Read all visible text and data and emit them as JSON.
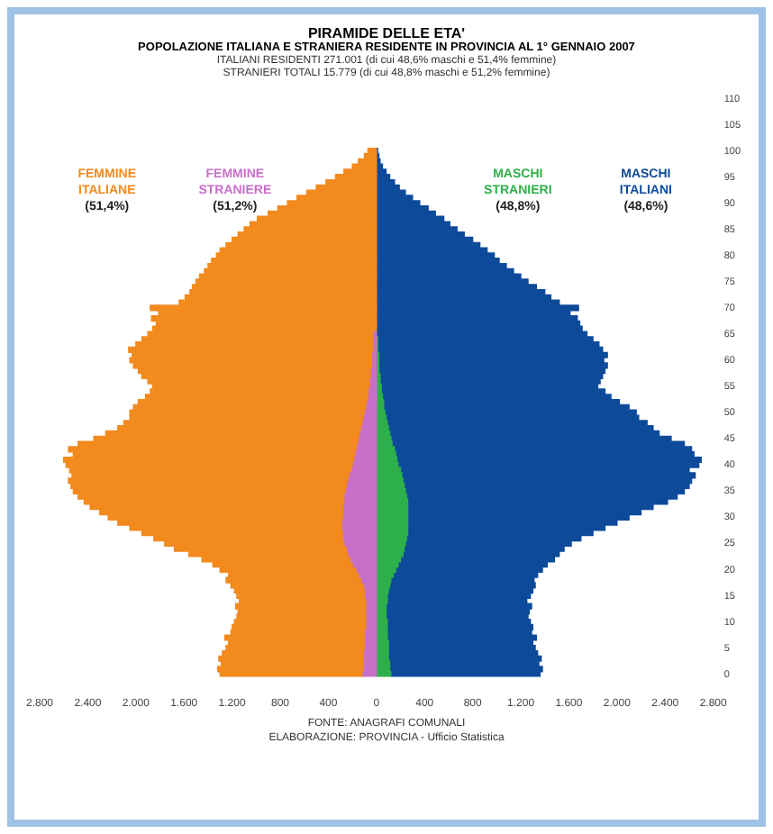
{
  "chart_data": {
    "type": "bar",
    "orientation": "horizontal",
    "stacked": true,
    "title": "PIRAMIDE DELLE ETA'",
    "subtitle": "POPOLAZIONE ITALIANA E STRANIERA RESIDENTE IN PROVINCIA AL 1° GENNAIO 2007",
    "annotations": [
      "ITALIANI RESIDENTI 271.001 (di cui 48,6% maschi e 51,4% femmine)",
      "STRANIERI TOTALI 15.779 (di cui 48,8% maschi e 51,2% femmine)",
      "FONTE: ANAGRAFI COMUNALI",
      "ELABORAZIONE: PROVINCIA - Ufficio Statistica"
    ],
    "categories": [
      "110",
      null,
      null,
      null,
      null,
      "105",
      null,
      null,
      null,
      null,
      "100",
      null,
      null,
      null,
      null,
      "95",
      null,
      null,
      null,
      null,
      "90",
      null,
      null,
      null,
      null,
      "85",
      null,
      null,
      null,
      null,
      "80",
      null,
      null,
      null,
      null,
      "75",
      null,
      null,
      null,
      null,
      "70",
      null,
      null,
      null,
      null,
      "65",
      null,
      null,
      null,
      null,
      "60",
      null,
      null,
      null,
      null,
      "55",
      null,
      null,
      null,
      null,
      "50",
      null,
      null,
      null,
      null,
      "45",
      null,
      null,
      null,
      null,
      "40",
      null,
      null,
      null,
      null,
      "35",
      null,
      null,
      null,
      null,
      "30",
      null,
      null,
      null,
      null,
      "25",
      null,
      null,
      null,
      null,
      "20",
      null,
      null,
      null,
      null,
      "15",
      null,
      null,
      null,
      null,
      "10",
      null,
      null,
      null,
      null,
      "5",
      null,
      null,
      null,
      null,
      "0"
    ],
    "series": [
      {
        "name": "FEMMINE\nSTRANIERE\n(51,2%)",
        "color": "#c86fc9",
        "values": [
          null,
          null,
          null,
          null,
          null,
          null,
          null,
          null,
          null,
          null,
          null,
          null,
          null,
          null,
          null,
          null,
          null,
          null,
          null,
          null,
          null,
          null,
          null,
          null,
          null,
          null,
          null,
          null,
          null,
          null,
          null,
          null,
          null,
          null,
          null,
          null,
          null,
          null,
          null,
          null,
          null,
          null,
          null,
          null,
          null,
          -20,
          -20,
          -20,
          -20,
          -30,
          -30,
          -30,
          -40,
          -40,
          -50,
          -50,
          -60,
          -60,
          -70,
          -80,
          -90,
          -100,
          -110,
          -120,
          -130,
          -140,
          -150,
          -160,
          -170,
          -180,
          -190,
          -200,
          -220,
          -230,
          -240,
          -250,
          -260,
          -260,
          -270,
          -270,
          -270,
          -280,
          -280,
          -270,
          -270,
          -260,
          -240,
          -230,
          -210,
          -190,
          -160,
          -140,
          -120,
          -100,
          -90,
          -90,
          -80,
          -80,
          -80,
          -80,
          -80,
          -80,
          -90,
          -90,
          -90,
          -90,
          -100,
          -100,
          -100,
          -100,
          -110
        ]
      },
      {
        "name": "FEMMINE\nITALIANE\n(51,4%)",
        "color": "#f28a1e",
        "values": [
          null,
          null,
          null,
          null,
          null,
          null,
          null,
          null,
          null,
          null,
          -70,
          -100,
          -150,
          -200,
          -270,
          -340,
          -420,
          -500,
          -580,
          -660,
          -740,
          -820,
          -900,
          -990,
          -1050,
          -1100,
          -1150,
          -1200,
          -1250,
          -1300,
          -1330,
          -1370,
          -1400,
          -1430,
          -1470,
          -1500,
          -1530,
          -1550,
          -1590,
          -1640,
          -1880,
          -1810,
          -1870,
          -1830,
          -1860,
          -1880,
          -1930,
          -1980,
          -2040,
          -2000,
          -2020,
          -1990,
          -1940,
          -1910,
          -1850,
          -1810,
          -1820,
          -1860,
          -1910,
          -1940,
          -1960,
          -1950,
          -1990,
          -2030,
          -2120,
          -2210,
          -2330,
          -2400,
          -2350,
          -2420,
          -2390,
          -2350,
          -2310,
          -2330,
          -2300,
          -2270,
          -2220,
          -2170,
          -2110,
          -2030,
          -1960,
          -1870,
          -1770,
          -1680,
          -1580,
          -1500,
          -1440,
          -1330,
          -1240,
          -1170,
          -1140,
          -1090,
          -1130,
          -1110,
          -1090,
          -1070,
          -1060,
          -1090,
          -1070,
          -1080,
          -1100,
          -1120,
          -1120,
          -1170,
          -1140,
          -1160,
          -1180,
          -1210,
          -1190,
          -1220,
          -1190
        ]
      },
      {
        "name": "MASCHI\nSTRANIERI\n(48,8%)",
        "color": "#2db04b",
        "values": [
          null,
          null,
          null,
          null,
          null,
          null,
          null,
          null,
          null,
          null,
          null,
          null,
          null,
          null,
          null,
          null,
          null,
          null,
          null,
          null,
          null,
          null,
          null,
          null,
          null,
          null,
          null,
          null,
          null,
          null,
          null,
          null,
          null,
          null,
          null,
          null,
          null,
          null,
          null,
          null,
          null,
          null,
          null,
          null,
          null,
          null,
          10,
          10,
          10,
          20,
          20,
          20,
          20,
          30,
          30,
          40,
          40,
          50,
          60,
          60,
          70,
          80,
          90,
          100,
          110,
          120,
          130,
          150,
          160,
          170,
          180,
          200,
          210,
          220,
          230,
          240,
          250,
          260,
          260,
          260,
          260,
          260,
          260,
          260,
          250,
          240,
          230,
          220,
          200,
          180,
          160,
          140,
          120,
          110,
          100,
          90,
          90,
          80,
          80,
          80,
          90,
          90,
          90,
          90,
          100,
          100,
          100,
          100,
          110,
          110,
          120
        ]
      },
      {
        "name": "MASCHI\nITALIANI\n(48,6%)",
        "color": "#0d4a9a",
        "values": [
          null,
          null,
          null,
          null,
          null,
          null,
          null,
          null,
          null,
          null,
          10,
          20,
          30,
          50,
          80,
          110,
          150,
          190,
          240,
          300,
          360,
          430,
          490,
          560,
          610,
          670,
          730,
          800,
          860,
          920,
          980,
          1020,
          1080,
          1140,
          1200,
          1260,
          1330,
          1400,
          1450,
          1520,
          1680,
          1610,
          1670,
          1690,
          1710,
          1750,
          1790,
          1840,
          1870,
          1900,
          1870,
          1900,
          1880,
          1850,
          1830,
          1800,
          1860,
          1900,
          1960,
          2040,
          2090,
          2100,
          2160,
          2200,
          2240,
          2330,
          2430,
          2470,
          2480,
          2530,
          2500,
          2400,
          2440,
          2400,
          2370,
          2320,
          2250,
          2160,
          2040,
          1940,
          1840,
          1740,
          1640,
          1540,
          1450,
          1380,
          1330,
          1300,
          1280,
          1240,
          1220,
          1200,
          1190,
          1210,
          1200,
          1190,
          1160,
          1210,
          1190,
          1180,
          1190,
          1210,
          1200,
          1240,
          1200,
          1220,
          1240,
          1270,
          1240,
          1270,
          1240
        ]
      }
    ],
    "xlim": [
      -2800,
      2800
    ],
    "xticks": [
      {
        "value": -2800,
        "label": "2.800"
      },
      {
        "value": -2400,
        "label": "2.400"
      },
      {
        "value": -2000,
        "label": "2.000"
      },
      {
        "value": -1600,
        "label": "1.600"
      },
      {
        "value": -1200,
        "label": "1.200"
      },
      {
        "value": -800,
        "label": "800"
      },
      {
        "value": -400,
        "label": "400"
      },
      0,
      400,
      800,
      {
        "value": 1200,
        "label": "1.200"
      },
      {
        "value": 1600,
        "label": "1.600"
      },
      {
        "value": 2000,
        "label": "2.000"
      },
      {
        "value": 2400,
        "label": "2.400"
      },
      {
        "value": 2800,
        "label": "2.800"
      }
    ],
    "grid": false
  }
}
